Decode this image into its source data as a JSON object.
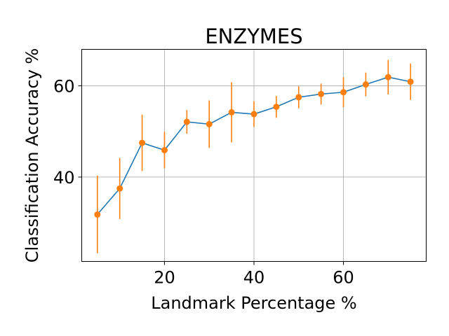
{
  "chart_data": {
    "type": "line",
    "title": "ENZYMES",
    "xlabel": "Landmark Percentage %",
    "ylabel": "Classification Accuracy %",
    "xlim": [
      1.5,
      78.5
    ],
    "ylim": [
      21.5,
      68
    ],
    "xticks": [
      20,
      40,
      60
    ],
    "yticks": [
      40,
      60
    ],
    "grid": true,
    "series": [
      {
        "line_color": "#1f77b4",
        "marker_color": "#ff7f0e",
        "x": [
          5,
          10,
          15,
          20,
          25,
          30,
          35,
          40,
          45,
          50,
          55,
          60,
          65,
          70,
          75
        ],
        "y": [
          31.8,
          37.5,
          47.5,
          45.9,
          52.1,
          51.6,
          54.2,
          53.8,
          55.4,
          57.5,
          58.2,
          58.6,
          60.3,
          61.9,
          60.9
        ],
        "error": [
          8.5,
          6.7,
          6.2,
          4.0,
          2.6,
          5.2,
          6.6,
          2.8,
          2.4,
          2.4,
          2.3,
          3.3,
          2.6,
          3.8,
          4.0
        ]
      }
    ]
  }
}
